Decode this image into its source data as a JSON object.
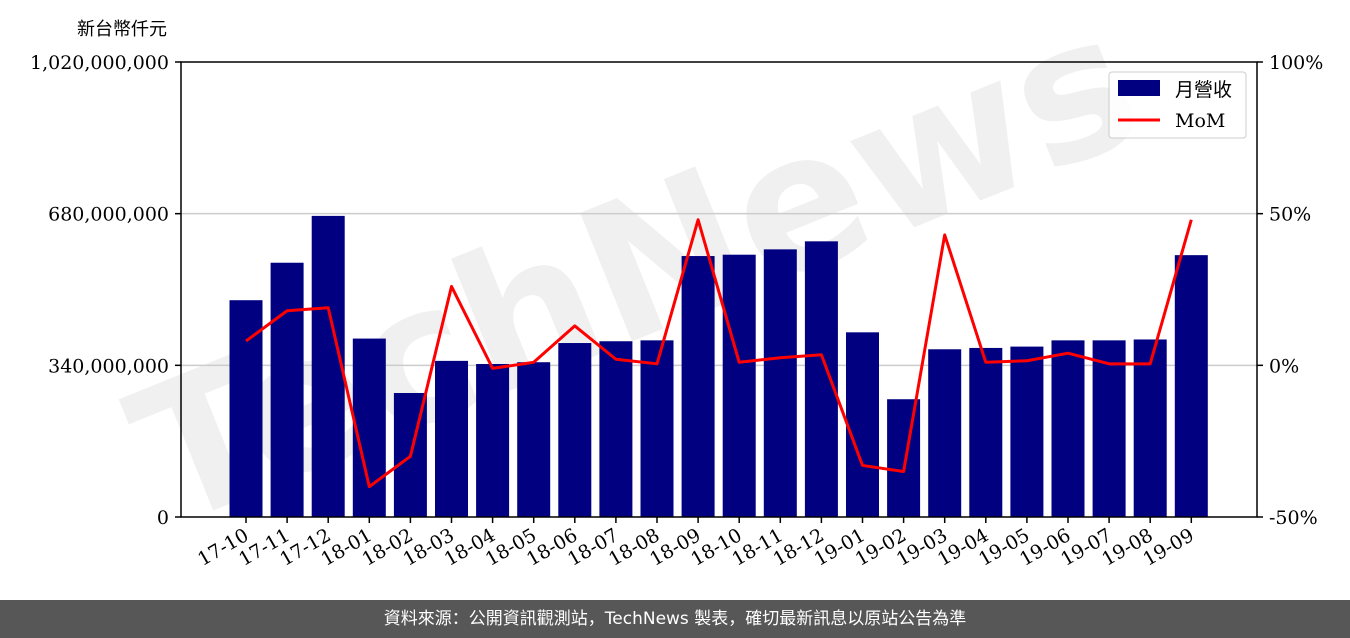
{
  "unit_label": "新台幣仟元",
  "footer_text": "資料來源：公開資訊觀測站，TechNews 製表，確切最新訊息以原站公告為準",
  "watermark_text": "TechNews",
  "colors": {
    "bar": "#000080",
    "line": "#ff0000",
    "grid": "#cccccc",
    "footer_bg": "#575757"
  },
  "chart_data": {
    "type": "bar+line",
    "categories": [
      "17-10",
      "17-11",
      "17-12",
      "18-01",
      "18-02",
      "18-03",
      "18-04",
      "18-05",
      "18-06",
      "18-07",
      "18-08",
      "18-09",
      "18-10",
      "18-11",
      "18-12",
      "19-01",
      "19-02",
      "19-03",
      "19-04",
      "19-05",
      "19-06",
      "19-07",
      "19-08",
      "19-09"
    ],
    "series": [
      {
        "name": "月營收",
        "type": "bar",
        "axis": "left",
        "values": [
          486000000,
          570000000,
          675000000,
          400000000,
          278000000,
          350000000,
          343000000,
          347000000,
          390000000,
          394000000,
          396000000,
          585000000,
          588000000,
          600000000,
          618000000,
          414000000,
          264000000,
          376000000,
          379000000,
          382000000,
          396000000,
          396000000,
          398000000,
          587000000
        ]
      },
      {
        "name": "MoM",
        "type": "line",
        "axis": "right",
        "values": [
          8,
          18,
          19,
          -40,
          -30,
          26,
          -1,
          1,
          13,
          2,
          0.5,
          48,
          1,
          2.5,
          3.5,
          -33,
          -35,
          43,
          1,
          1.5,
          4,
          0.5,
          0.5,
          48
        ]
      }
    ],
    "left_axis": {
      "min": 0,
      "max": 1020000000,
      "ticks": [
        "0",
        "340,000,000",
        "680,000,000",
        "1,020,000,000"
      ],
      "tick_values": [
        0,
        340000000,
        680000000,
        1020000000
      ]
    },
    "right_axis": {
      "min": -50,
      "max": 100,
      "ticks": [
        "-50%",
        "0%",
        "50%",
        "100%"
      ],
      "tick_values": [
        -50,
        0,
        50,
        100
      ]
    },
    "grid": "horizontal",
    "legend_position": "top-right"
  }
}
